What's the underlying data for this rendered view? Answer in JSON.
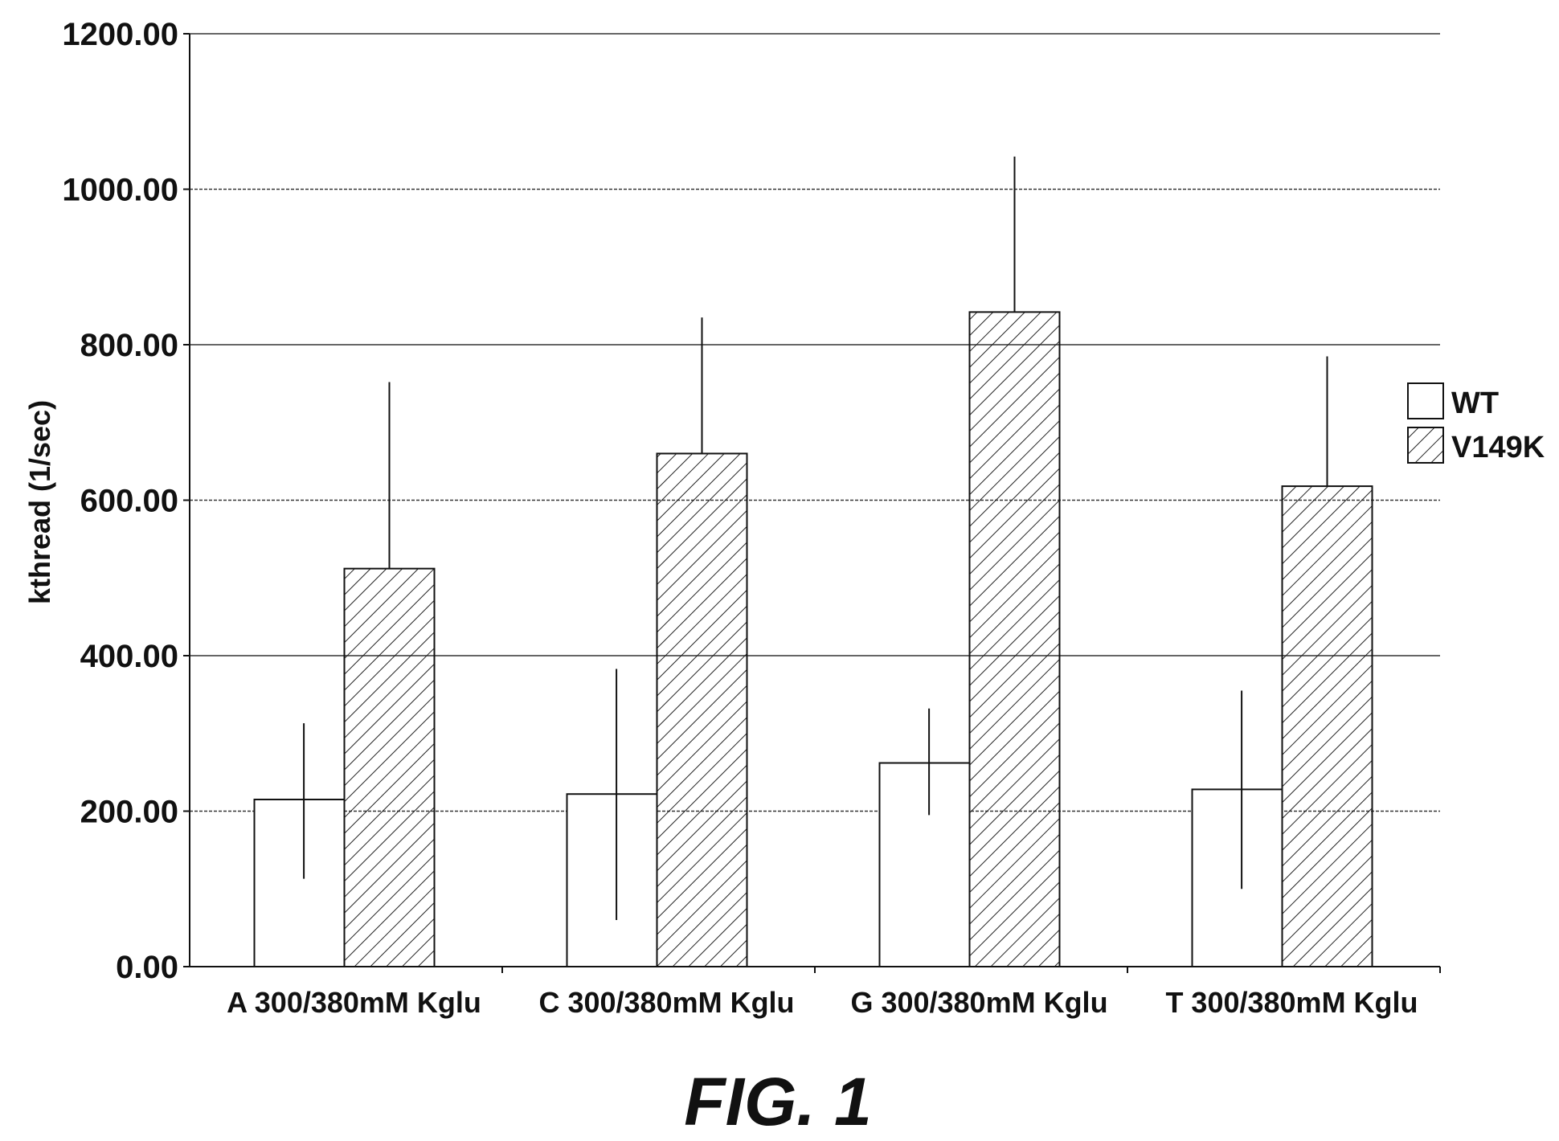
{
  "chart_data": {
    "type": "bar",
    "title": "",
    "ylabel": "kthread (1/sec)",
    "xlabel": "",
    "ylim": [
      0,
      1200
    ],
    "yticks": [
      "0.00",
      "200.00",
      "400.00",
      "600.00",
      "800.00",
      "1000.00",
      "1200.00"
    ],
    "grid": true,
    "legend_position": "right",
    "categories": [
      "A 300/380mM Kglu",
      "C 300/380mM Kglu",
      "G 300/380mM Kglu",
      "T 300/380mM Kglu"
    ],
    "series": [
      {
        "name": "WT",
        "fill": "none",
        "values": [
          215,
          222,
          262,
          228
        ],
        "error_high": [
          313,
          383,
          332,
          355
        ],
        "error_low": [
          113,
          60,
          195,
          100
        ]
      },
      {
        "name": "V149K",
        "fill": "hatched",
        "values": [
          512,
          660,
          842,
          618
        ],
        "error_high": [
          752,
          835,
          1042,
          785
        ],
        "error_low": [
          512,
          660,
          842,
          618
        ]
      }
    ]
  },
  "figure": {
    "caption": "FIG. 1"
  }
}
